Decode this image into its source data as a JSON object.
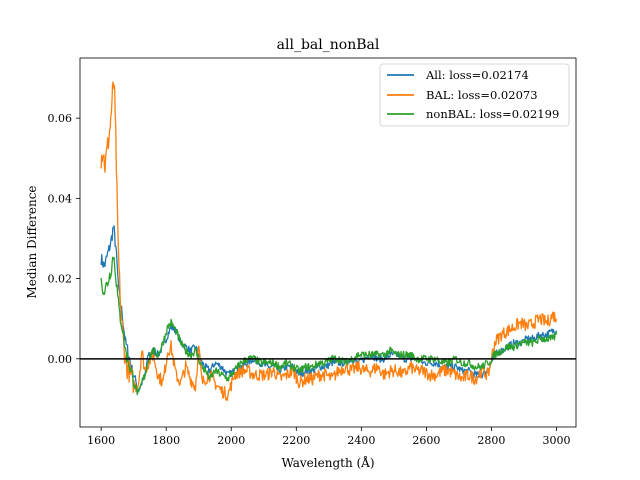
{
  "chart_data": {
    "type": "line",
    "title": "all_bal_nonBal",
    "xlabel": "Wavelength (Å)",
    "ylabel": "Median Difference",
    "xlim": [
      1535,
      3060
    ],
    "ylim": [
      -0.017,
      0.075
    ],
    "xticks": [
      1600,
      1800,
      2000,
      2200,
      2400,
      2600,
      2800,
      3000
    ],
    "yticks": [
      0.0,
      0.02,
      0.04,
      0.06
    ],
    "ytick_labels": [
      "0.00",
      "0.02",
      "0.04",
      "0.06"
    ],
    "hline": 0,
    "grid": false,
    "legend_position": "top-right",
    "series": [
      {
        "name": "All: loss=0.02174",
        "color": "#1f77b4",
        "x": [
          1600,
          1610,
          1620,
          1630,
          1638,
          1645,
          1655,
          1665,
          1675,
          1685,
          1695,
          1705,
          1715,
          1725,
          1735,
          1745,
          1760,
          1775,
          1790,
          1805,
          1815,
          1830,
          1845,
          1860,
          1875,
          1890,
          1900,
          1910,
          1920,
          1935,
          1950,
          1970,
          1990,
          2010,
          2030,
          2050,
          2070,
          2090,
          2110,
          2130,
          2150,
          2170,
          2190,
          2210,
          2230,
          2250,
          2270,
          2290,
          2310,
          2330,
          2350,
          2370,
          2390,
          2410,
          2430,
          2450,
          2470,
          2490,
          2510,
          2530,
          2550,
          2570,
          2590,
          2610,
          2630,
          2650,
          2670,
          2690,
          2710,
          2730,
          2750,
          2770,
          2790,
          2800,
          2810,
          2830,
          2850,
          2870,
          2890,
          2910,
          2930,
          2950,
          2970,
          2990,
          3000
        ],
        "y": [
          0.025,
          0.023,
          0.026,
          0.029,
          0.033,
          0.028,
          0.016,
          0.011,
          0.004,
          0.001,
          -0.003,
          -0.005,
          -0.008,
          -0.006,
          -0.004,
          0.001,
          0.002,
          0.001,
          0.003,
          0.006,
          0.008,
          0.007,
          0.004,
          0.003,
          0.002,
          0.003,
          0.001,
          -0.001,
          -0.002,
          -0.003,
          -0.001,
          -0.002,
          -0.004,
          -0.003,
          -0.002,
          -0.001,
          0.0,
          -0.001,
          -0.002,
          -0.002,
          -0.003,
          -0.002,
          -0.002,
          -0.004,
          -0.003,
          -0.003,
          -0.002,
          -0.002,
          -0.001,
          -0.001,
          -0.001,
          0.0,
          -0.001,
          0.0,
          0.001,
          0.0,
          0.0,
          0.001,
          0.001,
          0.0,
          0.0,
          0.0,
          -0.001,
          -0.001,
          -0.001,
          -0.002,
          -0.002,
          -0.002,
          -0.003,
          -0.003,
          -0.004,
          -0.004,
          -0.003,
          -0.001,
          0.001,
          0.002,
          0.003,
          0.004,
          0.004,
          0.005,
          0.005,
          0.006,
          0.006,
          0.007,
          0.007
        ]
      },
      {
        "name": "BAL: loss=0.02073",
        "color": "#ff7f0e",
        "x": [
          1600,
          1605,
          1612,
          1620,
          1628,
          1635,
          1640,
          1645,
          1650,
          1655,
          1662,
          1670,
          1678,
          1686,
          1695,
          1705,
          1715,
          1725,
          1735,
          1745,
          1760,
          1775,
          1790,
          1805,
          1815,
          1830,
          1845,
          1860,
          1875,
          1890,
          1900,
          1910,
          1920,
          1935,
          1950,
          1970,
          1990,
          2010,
          2030,
          2050,
          2070,
          2090,
          2110,
          2130,
          2150,
          2170,
          2190,
          2210,
          2230,
          2250,
          2270,
          2290,
          2310,
          2330,
          2350,
          2370,
          2390,
          2410,
          2430,
          2450,
          2470,
          2490,
          2510,
          2530,
          2550,
          2570,
          2590,
          2610,
          2630,
          2650,
          2670,
          2690,
          2710,
          2730,
          2750,
          2770,
          2790,
          2800,
          2810,
          2830,
          2850,
          2870,
          2890,
          2910,
          2930,
          2950,
          2970,
          2990,
          3000
        ],
        "y": [
          0.05,
          0.052,
          0.048,
          0.053,
          0.058,
          0.066,
          0.069,
          0.055,
          0.035,
          0.022,
          0.01,
          0.003,
          -0.002,
          -0.003,
          -0.005,
          -0.007,
          -0.006,
          0.002,
          -0.003,
          -0.001,
          0.001,
          -0.004,
          -0.006,
          0.002,
          0.003,
          -0.004,
          -0.006,
          -0.002,
          -0.005,
          -0.007,
          0.003,
          -0.006,
          -0.005,
          -0.004,
          -0.006,
          -0.008,
          -0.009,
          -0.004,
          -0.003,
          -0.003,
          -0.004,
          -0.004,
          -0.004,
          -0.003,
          -0.005,
          -0.004,
          -0.003,
          -0.006,
          -0.005,
          -0.005,
          -0.004,
          -0.004,
          -0.005,
          -0.003,
          -0.002,
          -0.003,
          -0.002,
          -0.003,
          -0.003,
          -0.002,
          -0.004,
          -0.003,
          -0.003,
          -0.004,
          -0.002,
          -0.003,
          -0.003,
          -0.004,
          -0.004,
          -0.003,
          -0.003,
          -0.004,
          -0.005,
          -0.004,
          -0.005,
          -0.003,
          -0.004,
          0.0,
          0.004,
          0.006,
          0.007,
          0.008,
          0.009,
          0.008,
          0.009,
          0.01,
          0.009,
          0.011,
          0.01
        ]
      },
      {
        "name": "nonBAL: loss=0.02199",
        "color": "#2ca02c",
        "x": [
          1600,
          1610,
          1620,
          1630,
          1638,
          1645,
          1655,
          1665,
          1675,
          1685,
          1695,
          1705,
          1715,
          1725,
          1735,
          1745,
          1760,
          1775,
          1790,
          1805,
          1815,
          1830,
          1845,
          1860,
          1875,
          1890,
          1900,
          1910,
          1920,
          1935,
          1950,
          1970,
          1990,
          2010,
          2030,
          2050,
          2070,
          2090,
          2110,
          2130,
          2150,
          2170,
          2190,
          2210,
          2230,
          2250,
          2270,
          2290,
          2310,
          2330,
          2350,
          2370,
          2390,
          2410,
          2430,
          2450,
          2470,
          2490,
          2510,
          2530,
          2550,
          2570,
          2590,
          2610,
          2630,
          2650,
          2670,
          2690,
          2710,
          2730,
          2750,
          2770,
          2790,
          2800,
          2810,
          2830,
          2850,
          2870,
          2890,
          2910,
          2930,
          2950,
          2970,
          2990,
          3000
        ],
        "y": [
          0.019,
          0.017,
          0.019,
          0.022,
          0.026,
          0.021,
          0.012,
          0.008,
          0.002,
          -0.001,
          -0.004,
          -0.007,
          -0.009,
          -0.006,
          -0.004,
          0.0,
          0.002,
          0.001,
          0.004,
          0.008,
          0.009,
          0.007,
          0.004,
          0.002,
          0.001,
          0.002,
          0.0,
          -0.002,
          -0.003,
          -0.005,
          -0.003,
          -0.004,
          -0.005,
          -0.003,
          -0.001,
          0.0,
          0.0,
          -0.001,
          -0.001,
          -0.001,
          -0.002,
          -0.001,
          -0.002,
          -0.003,
          -0.002,
          -0.002,
          -0.001,
          -0.001,
          0.0,
          0.0,
          -0.001,
          0.0,
          0.001,
          0.001,
          0.001,
          0.001,
          0.001,
          0.002,
          0.001,
          0.001,
          0.001,
          0.0,
          0.0,
          0.0,
          0.0,
          -0.001,
          -0.001,
          0.0,
          -0.001,
          -0.001,
          -0.002,
          -0.002,
          -0.001,
          0.0,
          0.001,
          0.002,
          0.003,
          0.003,
          0.004,
          0.004,
          0.004,
          0.005,
          0.005,
          0.005,
          0.006
        ]
      }
    ]
  }
}
